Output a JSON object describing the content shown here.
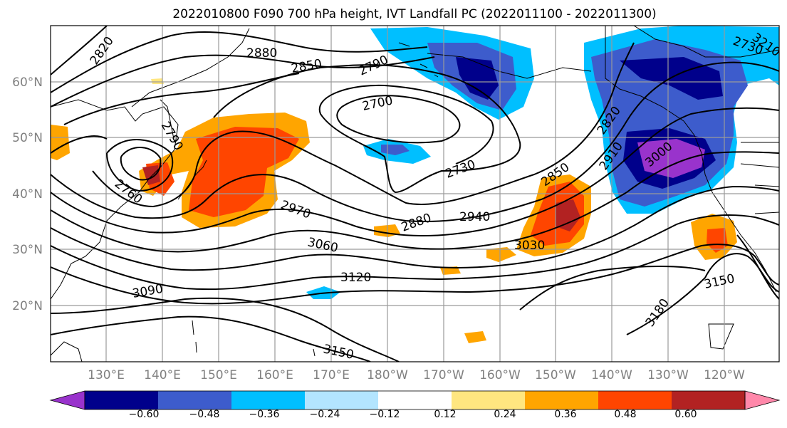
{
  "title": "2022010800 F090 700 hPa height, IVT Landfall PC (2022011100 - 2022011300)",
  "lat_ticks": [
    "60°N",
    "50°N",
    "40°N",
    "30°N",
    "20°N"
  ],
  "lon_ticks": [
    "130°E",
    "140°E",
    "150°E",
    "160°E",
    "170°E",
    "180°W",
    "170°W",
    "160°W",
    "150°W",
    "140°W",
    "130°W",
    "120°W"
  ],
  "contour_labels": [
    "2820",
    "2880",
    "2850",
    "2790",
    "2730",
    "2700",
    "2760",
    "2730",
    "2850",
    "2910",
    "3000",
    "2820",
    "2970",
    "2880",
    "2940",
    "3060",
    "3030",
    "3120",
    "3090",
    "3150",
    "3150",
    "3180",
    "3210",
    "2790"
  ],
  "colorbar": {
    "ticks": [
      "−0.60",
      "−0.48",
      "−0.36",
      "−0.24",
      "−0.12",
      "0.12",
      "0.24",
      "0.36",
      "0.48",
      "0.60"
    ],
    "colors": [
      "#9933cc",
      "#00008b",
      "#3d5ccc",
      "#00bfff",
      "#b3e5ff",
      "#ffffff",
      "#ffe680",
      "#ffa500",
      "#ff4500",
      "#b22222",
      "#ff88aa"
    ]
  }
}
